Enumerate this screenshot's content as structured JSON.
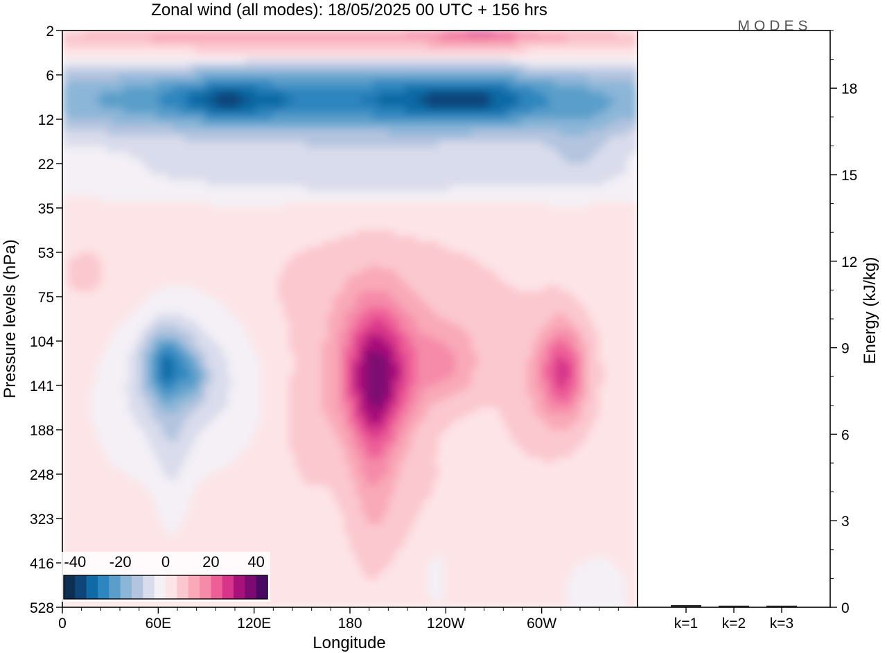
{
  "chart_data": {
    "type": "heatmap",
    "title": "Zonal wind (all modes):  18/05/2025  00 UTC  + 156 hrs",
    "logo": "MODES",
    "xlabel": "Longitude",
    "ylabel": "Pressure levels (hPa)",
    "y2label": "Energy (kJ/kg)",
    "x_ticks": [
      "0",
      "60E",
      "120E",
      "180",
      "120W",
      "60W"
    ],
    "y_ticks": [
      "2",
      "6",
      "12",
      "22",
      "35",
      "53",
      "75",
      "104",
      "141",
      "188",
      "248",
      "323",
      "416",
      "528"
    ],
    "energy_ticks": [
      "0",
      "3",
      "6",
      "9",
      "12",
      "15",
      "18"
    ],
    "energy_ylim": [
      0,
      20
    ],
    "energy_categories": [
      "k=1",
      "k=2",
      "k=3"
    ],
    "energy_values": [
      0.05,
      0.03,
      0.03
    ],
    "colorbar": {
      "tick_labels": [
        "-40",
        "-20",
        "0",
        "20",
        "40"
      ],
      "colors": [
        "#0d2f52",
        "#10457a",
        "#0f6aa6",
        "#2d86bf",
        "#5a9fcb",
        "#8cb6d8",
        "#b4c4df",
        "#d9dcec",
        "#f4f0f6",
        "#fde4e6",
        "#fbc8cf",
        "#f9a9b8",
        "#f58aa9",
        "#ee5f98",
        "#d8358a",
        "#a8117a",
        "#7d0a72",
        "#4a0a63"
      ]
    },
    "field_levels": [
      -40,
      -35,
      -30,
      -25,
      -20,
      -15,
      -10,
      -5,
      0,
      5,
      10,
      15,
      20,
      25,
      30,
      35,
      40
    ]
  }
}
